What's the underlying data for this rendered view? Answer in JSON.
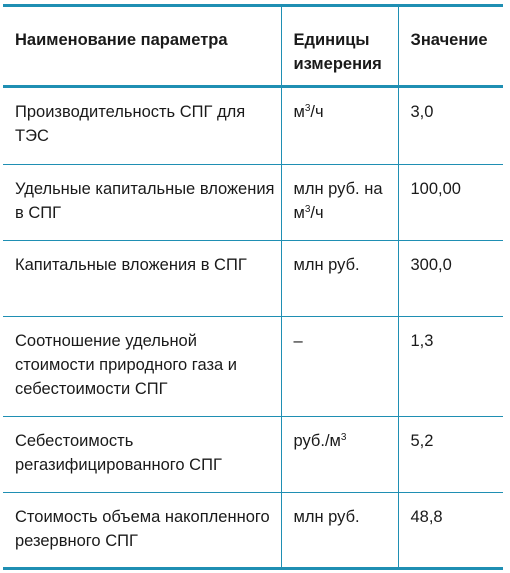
{
  "table": {
    "headers": {
      "name": "Наименование параметра",
      "units": "Единицы измерения",
      "value": "Значение"
    },
    "rows": [
      {
        "name": "Производительность СПГ для ТЭС",
        "unit_main": "м",
        "unit_sup": "3",
        "unit_tail": "/ч",
        "value": "3,0"
      },
      {
        "name": "Удельные капитальные вложения в СПГ",
        "unit_main": "млн руб. на м",
        "unit_sup": "3",
        "unit_tail": "/ч",
        "value": "100,00"
      },
      {
        "name": "Капитальные вложения в СПГ",
        "unit_main": "млн руб.",
        "unit_sup": "",
        "unit_tail": "",
        "value": "300,0"
      },
      {
        "name": "Соотношение удельной стоимости природного газа и себестоимости СПГ",
        "unit_main": "–",
        "unit_sup": "",
        "unit_tail": "",
        "value": "1,3"
      },
      {
        "name": "Себестоимость регазифицированного СПГ",
        "unit_main": "руб./м",
        "unit_sup": "3",
        "unit_tail": "",
        "value": "5,2"
      },
      {
        "name": "Стоимость объема накопленного резервного СПГ",
        "unit_main": "млн руб.",
        "unit_sup": "",
        "unit_tail": "",
        "value": "48,8"
      }
    ]
  },
  "colors": {
    "rule": "#1f8fb3",
    "text": "#1a1a1a"
  }
}
